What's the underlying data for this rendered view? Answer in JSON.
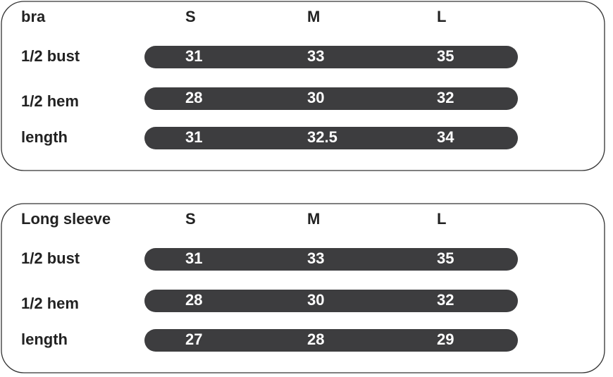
{
  "tables": [
    {
      "header": [
        "bra",
        "S",
        "M",
        "L"
      ],
      "rows": [
        [
          "1/2 bust",
          "31",
          "33",
          "35"
        ],
        [
          "1/2 hem",
          "28",
          "30",
          "32"
        ],
        [
          "length",
          "31",
          "32.5",
          "34"
        ]
      ]
    },
    {
      "header": [
        "Long sleeve",
        "S",
        "M",
        "L"
      ],
      "rows": [
        [
          "1/2 bust",
          "31",
          "33",
          "35"
        ],
        [
          "1/2 hem",
          "28",
          "30",
          "32"
        ],
        [
          "length",
          "27",
          "28",
          "29"
        ]
      ]
    }
  ]
}
